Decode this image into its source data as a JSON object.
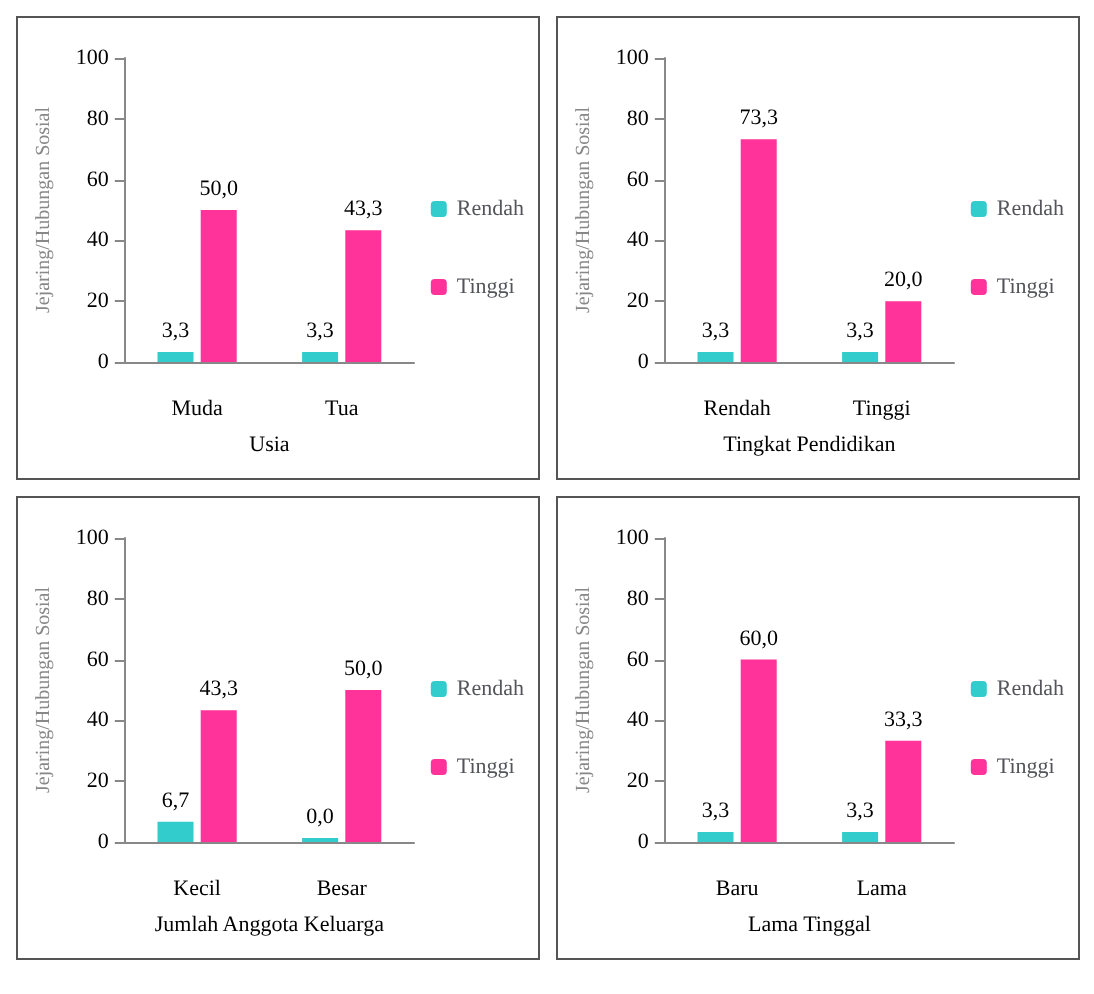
{
  "chart_data": [
    {
      "type": "bar",
      "xlabel": "Usia",
      "ylabel": "Jejaring/Hubungan Sosial",
      "categories": [
        "Muda",
        "Tua"
      ],
      "series": [
        {
          "name": "Rendah",
          "color": "#33cccc",
          "values": [
            3.3,
            3.3
          ],
          "value_labels": [
            "3,3",
            "3,3"
          ]
        },
        {
          "name": "Tinggi",
          "color": "#ff3399",
          "values": [
            50.0,
            43.3
          ],
          "value_labels": [
            "50,0",
            "43,3"
          ]
        }
      ],
      "ylim": [
        0,
        100
      ],
      "yticks": [
        0,
        20,
        40,
        60,
        80,
        100
      ],
      "legend": "right"
    },
    {
      "type": "bar",
      "xlabel": "Tingkat Pendidikan",
      "ylabel": "Jejaring/Hubungan Sosial",
      "categories": [
        "Rendah",
        "Tinggi"
      ],
      "series": [
        {
          "name": "Rendah",
          "color": "#33cccc",
          "values": [
            3.3,
            3.3
          ],
          "value_labels": [
            "3,3",
            "3,3"
          ]
        },
        {
          "name": "Tinggi",
          "color": "#ff3399",
          "values": [
            73.3,
            20.0
          ],
          "value_labels": [
            "73,3",
            "20,0"
          ]
        }
      ],
      "ylim": [
        0,
        100
      ],
      "yticks": [
        0,
        20,
        40,
        60,
        80,
        100
      ],
      "legend": "right"
    },
    {
      "type": "bar",
      "xlabel": "Jumlah Anggota Keluarga",
      "ylabel": "Jejaring/Hubungan Sosial",
      "categories": [
        "Kecil",
        "Besar"
      ],
      "series": [
        {
          "name": "Rendah",
          "color": "#33cccc",
          "values": [
            6.7,
            0.0
          ],
          "value_labels": [
            "6,7",
            "0,0"
          ]
        },
        {
          "name": "Tinggi",
          "color": "#ff3399",
          "values": [
            43.3,
            50.0
          ],
          "value_labels": [
            "43,3",
            "50,0"
          ]
        }
      ],
      "ylim": [
        0,
        100
      ],
      "yticks": [
        0,
        20,
        40,
        60,
        80,
        100
      ],
      "legend": "right"
    },
    {
      "type": "bar",
      "xlabel": "Lama Tinggal",
      "ylabel": "Jejaring/Hubungan Sosial",
      "categories": [
        "Baru",
        "Lama"
      ],
      "series": [
        {
          "name": "Rendah",
          "color": "#33cccc",
          "values": [
            3.3,
            3.3
          ],
          "value_labels": [
            "3,3",
            "3,3"
          ]
        },
        {
          "name": "Tinggi",
          "color": "#ff3399",
          "values": [
            60.0,
            33.3
          ],
          "value_labels": [
            "60,0",
            "33,3"
          ]
        }
      ],
      "ylim": [
        0,
        100
      ],
      "yticks": [
        0,
        20,
        40,
        60,
        80,
        100
      ],
      "legend": "right"
    }
  ]
}
